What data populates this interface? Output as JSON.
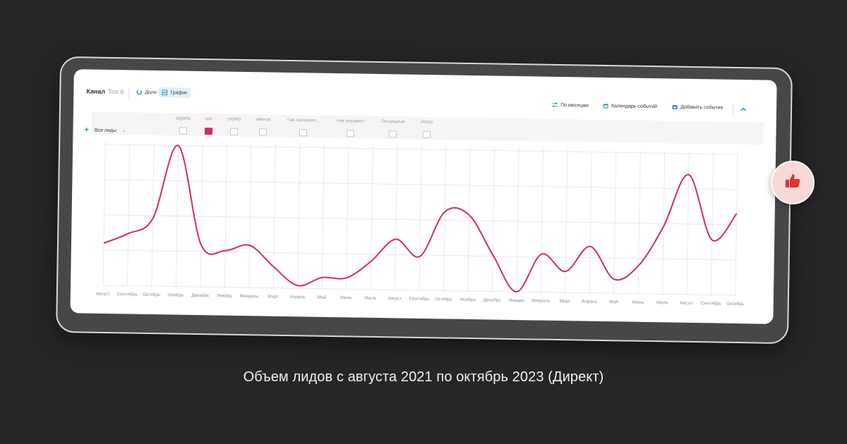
{
  "toolbar": {
    "title": "Канал",
    "top_label": "Топ 6",
    "shares_label": "Доли",
    "graph_label": "График",
    "by_months_label": "По месяцам",
    "events_calendar_label": "Календарь событий",
    "add_event_label": "Добавить событие"
  },
  "filter": {
    "label": "Все лиды"
  },
  "columns": [
    {
      "label": "organic",
      "active": false
    },
    {
      "label": "cpc",
      "active": true
    },
    {
      "label": "(none)",
      "active": false
    },
    {
      "label": "referral",
      "active": false
    },
    {
      "label": "<не заполнен...",
      "active": false
    },
    {
      "label": "<не указано>",
      "active": false
    },
    {
      "label": "Остальные",
      "active": false
    },
    {
      "label": "Итого",
      "active": false
    }
  ],
  "colors": {
    "line": "#d42a63",
    "accent": "#2b8fb3",
    "frame": "#474649",
    "background": "#262527"
  },
  "icons": [
    "shares-icon",
    "graph-icon",
    "sliders-icon",
    "calendar-icon",
    "add-event-icon",
    "chevron-up-icon",
    "thumbs-up-icon",
    "plus-icon",
    "chevron-down-icon"
  ],
  "caption": "Объем лидов с августа 2021 по октябрь 2023 (Директ)",
  "chart_data": {
    "type": "line",
    "categories": [
      "Август",
      "Сентябрь",
      "Октябрь",
      "Ноябрь",
      "Декабрь",
      "Январь",
      "Февраль",
      "Март",
      "Апрель",
      "Май",
      "Июнь",
      "Июль",
      "Август",
      "Сентябрь",
      "Октябрь",
      "Ноябрь",
      "Декабрь",
      "Январь",
      "Февраль",
      "Март",
      "Апрель",
      "Май",
      "Июнь",
      "Июль",
      "Август",
      "Сентябрь",
      "Октябрь"
    ],
    "series": [
      {
        "values": [
          30,
          37,
          48,
          100,
          30,
          26,
          30,
          15,
          2,
          8,
          8,
          20,
          36,
          24,
          56,
          54,
          26,
          0,
          27,
          15,
          33,
          10,
          20,
          48,
          85,
          39,
          58
        ]
      }
    ],
    "ylim": [
      0,
      100
    ],
    "grid": true
  }
}
